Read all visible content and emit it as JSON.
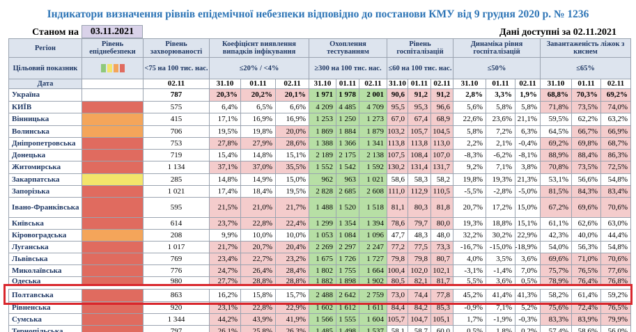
{
  "title": "Індикатори визначення рівнів епідемічної небезпеки відповідно до постанови КМУ від 9 грудня 2020 р. № 1236",
  "status": {
    "label": "Станом на",
    "date": "03.11.2021",
    "available": "Дані доступні за  02.11.2021"
  },
  "header": {
    "columns": [
      "Регіон",
      "Рівень епіднебезпеки",
      "Рівень захворюваності",
      "Коефіцієнт виявлення випадків інфікування",
      "Охоплення тестуванням",
      "Рівень госпіталізацій",
      "Динаміка рівня госпіталізацій",
      "Завантаженість ліжок з киснем"
    ]
  },
  "targets": {
    "label": "Цільовий показник",
    "values": [
      "<75 на 100 тис. нас.",
      "≤20% / <4%",
      "≥300 на 100 тис. нас.",
      "≤60 на 100 тис. нас.",
      "≤50%",
      "≤65%"
    ]
  },
  "dates": {
    "label": "Дата",
    "values": [
      "02.11",
      "31.10",
      "01.11",
      "02.11",
      "31.10",
      "01.11",
      "02.11",
      "31.10",
      "01.11",
      "02.11",
      "31.10",
      "01.11",
      "02.11",
      "31.10",
      "01.11",
      "02.11"
    ]
  },
  "palette": {
    "r": "#f4cccc",
    "g": "#b7dfa5",
    "w": "#ffffff"
  },
  "rows": [
    {
      "region": "Україна",
      "level_color": "#ffffff",
      "incidence": "787",
      "values": [
        "20,3%",
        "20,2%",
        "20,1%",
        "1 971",
        "1 978",
        "2 001",
        "90,6",
        "91,2",
        "91,2",
        "2,8%",
        "3,3%",
        "1,9%",
        "68,8%",
        "70,3%",
        "69,2%"
      ],
      "fills": "rrrgggrrrwwwrrr"
    },
    {
      "region": "КИЇВ",
      "level_color": "#e06b5f",
      "incidence": "575",
      "values": [
        "6,4%",
        "6,5%",
        "6,6%",
        "4 209",
        "4 485",
        "4 709",
        "95,5",
        "95,3",
        "96,6",
        "5,6%",
        "5,8%",
        "5,8%",
        "71,8%",
        "73,5%",
        "74,0%"
      ],
      "fills": "wwwgggrrrwwwrrr"
    },
    {
      "region": "Вінницька",
      "level_color": "#f4a55a",
      "incidence": "415",
      "values": [
        "17,1%",
        "16,9%",
        "16,9%",
        "1 253",
        "1 250",
        "1 273",
        "67,0",
        "67,4",
        "68,9",
        "22,6%",
        "23,6%",
        "21,1%",
        "59,5%",
        "62,2%",
        "63,2%"
      ],
      "fills": "wwwgggrrrwwwwww"
    },
    {
      "region": "Волинська",
      "level_color": "#f4a55a",
      "incidence": "706",
      "values": [
        "19,5%",
        "19,8%",
        "20,0%",
        "1 869",
        "1 884",
        "1 879",
        "103,2",
        "105,7",
        "104,5",
        "5,8%",
        "7,2%",
        "6,3%",
        "64,5%",
        "66,7%",
        "66,9%"
      ],
      "fills": "wwrgggrrrwwwwrr"
    },
    {
      "region": "Дніпропетровська",
      "level_color": "#e06b5f",
      "incidence": "753",
      "values": [
        "27,8%",
        "27,9%",
        "28,6%",
        "1 388",
        "1 366",
        "1 341",
        "113,8",
        "113,8",
        "113,0",
        "2,2%",
        "2,1%",
        "-0,4%",
        "69,2%",
        "69,8%",
        "68,7%"
      ],
      "fills": "rrrgggrrrwwwrrr"
    },
    {
      "region": "Донецька",
      "level_color": "#e06b5f",
      "incidence": "719",
      "values": [
        "15,4%",
        "14,8%",
        "15,1%",
        "2 189",
        "2 175",
        "2 138",
        "107,5",
        "108,4",
        "107,0",
        "-8,3%",
        "-6,2%",
        "-8,1%",
        "88,9%",
        "88,4%",
        "86,3%"
      ],
      "fills": "wwwgggrrrwwwrrr"
    },
    {
      "region": "Житомирська",
      "level_color": "#e06b5f",
      "incidence": "1 134",
      "values": [
        "37,1%",
        "37,0%",
        "35,5%",
        "1 552",
        "1 542",
        "1 592",
        "130,2",
        "131,4",
        "131,7",
        "9,2%",
        "7,1%",
        "3,8%",
        "70,8%",
        "73,5%",
        "72,5%"
      ],
      "fills": "rrrgggrrrwwwrrr"
    },
    {
      "region": "Закарпатська",
      "level_color": "#f3e56b",
      "incidence": "285",
      "values": [
        "14,8%",
        "14,9%",
        "15,0%",
        "962",
        "963",
        "1 021",
        "58,6",
        "58,3",
        "58,2",
        "19,8%",
        "19,3%",
        "21,3%",
        "53,1%",
        "56,6%",
        "54,8%"
      ],
      "fills": "wwwgggwwwwwwwww"
    },
    {
      "region": "Запорізька",
      "level_color": "#e06b5f",
      "incidence": "1 021",
      "values": [
        "17,4%",
        "18,4%",
        "19,5%",
        "2 828",
        "2 685",
        "2 608",
        "111,0",
        "112,9",
        "110,5",
        "-5,5%",
        "-2,8%",
        "-5,0%",
        "81,5%",
        "84,3%",
        "83,4%"
      ],
      "fills": "wwwgggrrrwwwrrr"
    },
    {
      "region": "Івано-Франківська",
      "level_color": "#e06b5f",
      "incidence": "595",
      "values": [
        "21,5%",
        "21,0%",
        "21,7%",
        "1 488",
        "1 520",
        "1 518",
        "81,1",
        "80,3",
        "81,8",
        "20,7%",
        "17,2%",
        "15,0%",
        "67,2%",
        "69,6%",
        "70,6%"
      ],
      "fills": "rrrgggrrrwwwrrr"
    },
    {
      "region": "Київська",
      "level_color": "#e06b5f",
      "incidence": "614",
      "values": [
        "23,7%",
        "22,8%",
        "22,4%",
        "1 299",
        "1 354",
        "1 394",
        "78,6",
        "79,7",
        "80,0",
        "19,3%",
        "18,8%",
        "15,1%",
        "61,1%",
        "62,6%",
        "63,0%"
      ],
      "fills": "rrrgggrrrwwwwww"
    },
    {
      "region": "Кіровоградська",
      "level_color": "#f4a55a",
      "incidence": "208",
      "values": [
        "9,9%",
        "10,0%",
        "10,0%",
        "1 053",
        "1 084",
        "1 096",
        "47,7",
        "48,3",
        "48,0",
        "32,2%",
        "30,2%",
        "22,9%",
        "42,3%",
        "40,0%",
        "44,4%"
      ],
      "fills": "wwwgggwwwwwwwww"
    },
    {
      "region": "Луганська",
      "level_color": "#e06b5f",
      "incidence": "1 017",
      "values": [
        "21,7%",
        "20,7%",
        "20,4%",
        "2 269",
        "2 297",
        "2 247",
        "77,2",
        "77,5",
        "73,3",
        "-16,7%",
        "-15,0%",
        "-18,9%",
        "54,0%",
        "56,3%",
        "54,8%"
      ],
      "fills": "rrrgggrrrwwwwww"
    },
    {
      "region": "Львівська",
      "level_color": "#e06b5f",
      "incidence": "769",
      "values": [
        "23,4%",
        "22,7%",
        "23,2%",
        "1 675",
        "1 726",
        "1 727",
        "79,8",
        "79,8",
        "80,7",
        "4,0%",
        "3,5%",
        "3,6%",
        "69,6%",
        "71,0%",
        "70,6%"
      ],
      "fills": "rrrgggrrrwwwrrr"
    },
    {
      "region": "Миколаївська",
      "level_color": "#e06b5f",
      "incidence": "776",
      "values": [
        "24,7%",
        "26,4%",
        "28,4%",
        "1 802",
        "1 755",
        "1 664",
        "100,4",
        "102,0",
        "102,1",
        "-3,1%",
        "-1,4%",
        "7,0%",
        "75,7%",
        "76,5%",
        "77,6%"
      ],
      "fills": "rrrgggrrrwwwrrr"
    },
    {
      "region": "Одеська",
      "level_color": "#e06b5f",
      "incidence": "980",
      "values": [
        "27,7%",
        "28,8%",
        "28,8%",
        "1 882",
        "1 898",
        "1 902",
        "80,5",
        "82,1",
        "81,7",
        "5,5%",
        "3,6%",
        "0,5%",
        "78,9%",
        "76,4%",
        "76,8%"
      ],
      "fills": "rrrgggrrrwwwrrr"
    },
    {
      "region": "Полтавська",
      "level_color": "#e06b5f",
      "incidence": "863",
      "values": [
        "16,2%",
        "15,8%",
        "15,7%",
        "2 488",
        "2 642",
        "2 759",
        "73,0",
        "74,4",
        "77,8",
        "45,2%",
        "41,4%",
        "41,3%",
        "58,2%",
        "61,4%",
        "59,2%"
      ],
      "fills": "wwwgggrrrwwwwww"
    },
    {
      "region": "Рівненська",
      "level_color": "#e06b5f",
      "incidence": "920",
      "values": [
        "23,1%",
        "22,8%",
        "22,9%",
        "1 602",
        "1 612",
        "1 611",
        "84,4",
        "84,2",
        "85,3",
        "-0,9%",
        "7,1%",
        "5,2%",
        "75,6%",
        "72,4%",
        "76,5%"
      ],
      "fills": "rrrgggrrrwwwrrr"
    },
    {
      "region": "Сумська",
      "level_color": "#e06b5f",
      "incidence": "1 344",
      "values": [
        "44,2%",
        "43,9%",
        "41,9%",
        "1 566",
        "1 555",
        "1 604",
        "105,7",
        "104,7",
        "105,1",
        "1,7%",
        "-1,9%",
        "-0,3%",
        "83,3%",
        "83,9%",
        "79,9%"
      ],
      "fills": "rrrgggrrrwwwrrr"
    },
    {
      "region": "Тернопільська",
      "level_color": "#e06b5f",
      "incidence": "797",
      "values": [
        "26,1%",
        "25,8%",
        "26,3%",
        "1 485",
        "1 498",
        "1 537",
        "58,1",
        "58,7",
        "60,0",
        "0,5%",
        "1,8%",
        "0,2%",
        "57,4%",
        "58,6%",
        "56,0%"
      ],
      "fills": "rrrgggwwwwwwwww"
    }
  ]
}
